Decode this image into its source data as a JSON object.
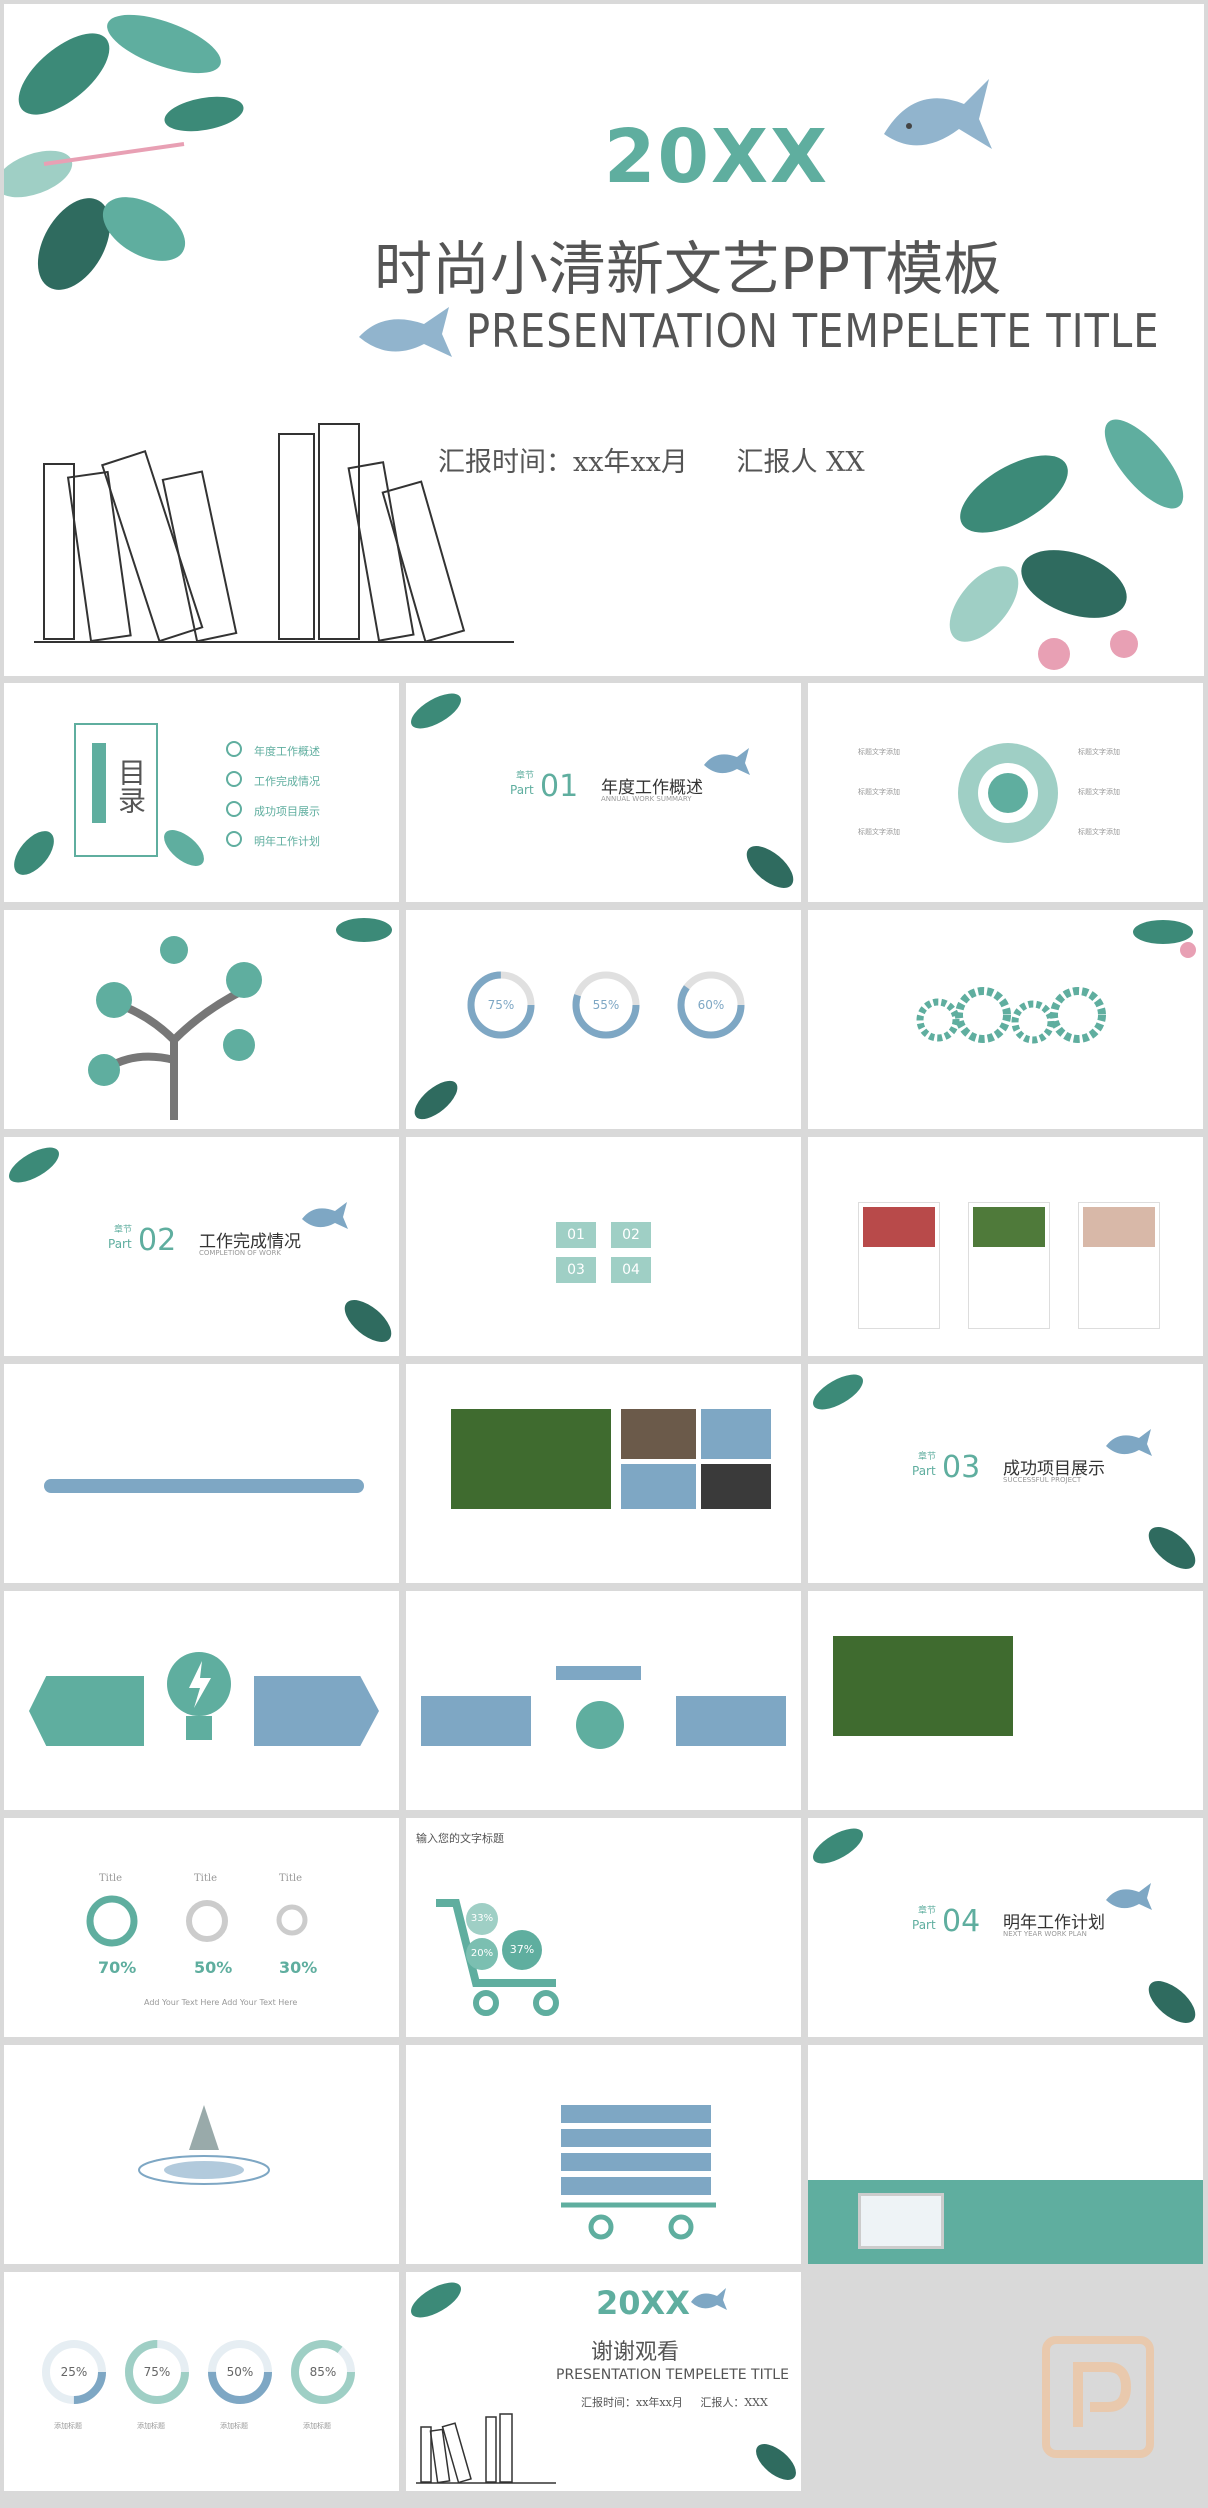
{
  "hero": {
    "year": "20XX",
    "title": "时尚小清新文艺PPT模板",
    "subtitle": "PRESENTATION TEMPELETE TITLE",
    "report_time": "汇报时间：xx年xx月",
    "reporter": "汇报人 XX"
  },
  "toc": {
    "title": "目录",
    "items": [
      "年度工作概述",
      "工作完成情况",
      "成功项目展示",
      "明年工作计划"
    ]
  },
  "sections": [
    {
      "label": "章节",
      "part": "Part",
      "num": "01",
      "title": "年度工作概述",
      "en": "ANNUAL WORK SUMMARY"
    },
    {
      "label": "章节",
      "part": "Part",
      "num": "02",
      "title": "工作完成情况",
      "en": "COMPLETION OF WORK"
    },
    {
      "label": "章节",
      "part": "Part",
      "num": "03",
      "title": "成功项目展示",
      "en": "SUCCESSFUL PROJECT"
    },
    {
      "label": "章节",
      "part": "Part",
      "num": "04",
      "title": "明年工作计划",
      "en": "NEXT YEAR WORK PLAN"
    }
  ],
  "rings_a": [
    "75%",
    "55%",
    "60%"
  ],
  "arrows_nums": [
    "01",
    "02",
    "03",
    "04"
  ],
  "bars": [
    "70%",
    "50%",
    "30%"
  ],
  "bars_title": "Title",
  "cart_pcts": [
    "33%",
    "20%",
    "37%"
  ],
  "cart_title": "输入您的文字标题",
  "footer_rings": [
    "25%",
    "75%",
    "50%",
    "85%"
  ],
  "footer_labels": [
    "添加标题",
    "添加标题",
    "添加标题",
    "添加标题"
  ],
  "add_text": "Add Your Text Here Add Your Text Here",
  "thanks": {
    "year": "20XX",
    "title": "谢谢观看",
    "subtitle": "PRESENTATION TEMPELETE TITLE",
    "time": "汇报时间：xx年xx月",
    "reporter": "汇报人：XXX"
  },
  "colors": {
    "accent": "#5fae9f",
    "accent_light": "#9fcfc5",
    "blue_accent": "#7ea7c4",
    "leaf_dark": "#2f6b5f",
    "pink": "#e8a0b4"
  }
}
